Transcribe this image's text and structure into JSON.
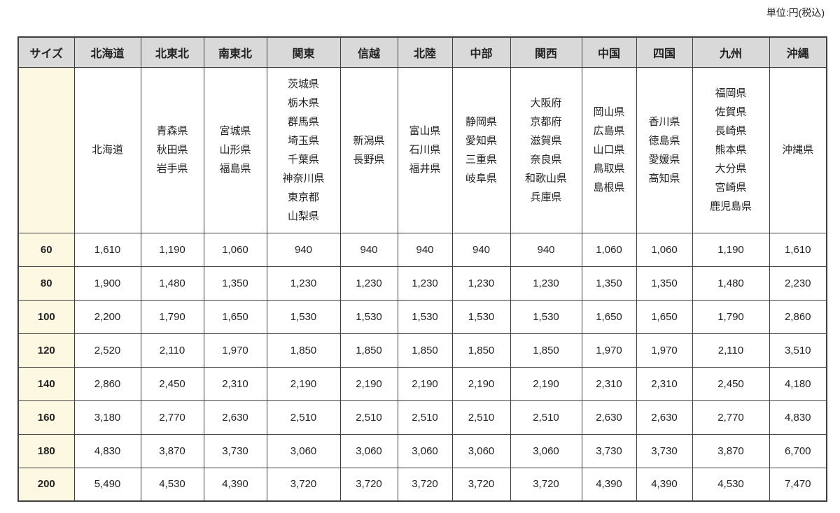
{
  "unit_note": "単位:円(税込)",
  "table": {
    "size_header": "サイズ",
    "regions": [
      {
        "name": "北海道",
        "prefectures": [
          "北海道"
        ]
      },
      {
        "name": "北東北",
        "prefectures": [
          "青森県",
          "秋田県",
          "岩手県"
        ]
      },
      {
        "name": "南東北",
        "prefectures": [
          "宮城県",
          "山形県",
          "福島県"
        ]
      },
      {
        "name": "関東",
        "prefectures": [
          "茨城県",
          "栃木県",
          "群馬県",
          "埼玉県",
          "千葉県",
          "神奈川県",
          "東京都",
          "山梨県"
        ]
      },
      {
        "name": "信越",
        "prefectures": [
          "新潟県",
          "長野県"
        ]
      },
      {
        "name": "北陸",
        "prefectures": [
          "富山県",
          "石川県",
          "福井県"
        ]
      },
      {
        "name": "中部",
        "prefectures": [
          "静岡県",
          "愛知県",
          "三重県",
          "岐阜県"
        ]
      },
      {
        "name": "関西",
        "prefectures": [
          "大阪府",
          "京都府",
          "滋賀県",
          "奈良県",
          "和歌山県",
          "兵庫県"
        ]
      },
      {
        "name": "中国",
        "prefectures": [
          "岡山県",
          "広島県",
          "山口県",
          "鳥取県",
          "島根県"
        ]
      },
      {
        "name": "四国",
        "prefectures": [
          "香川県",
          "徳島県",
          "愛媛県",
          "高知県"
        ]
      },
      {
        "name": "九州",
        "prefectures": [
          "福岡県",
          "佐賀県",
          "長崎県",
          "熊本県",
          "大分県",
          "宮崎県",
          "鹿児島県"
        ]
      },
      {
        "name": "沖縄",
        "prefectures": [
          "沖縄県"
        ]
      }
    ],
    "rows": [
      {
        "size": "60",
        "prices": [
          "1,610",
          "1,190",
          "1,060",
          "940",
          "940",
          "940",
          "940",
          "940",
          "1,060",
          "1,060",
          "1,190",
          "1,610"
        ]
      },
      {
        "size": "80",
        "prices": [
          "1,900",
          "1,480",
          "1,350",
          "1,230",
          "1,230",
          "1,230",
          "1,230",
          "1,230",
          "1,350",
          "1,350",
          "1,480",
          "2,230"
        ]
      },
      {
        "size": "100",
        "prices": [
          "2,200",
          "1,790",
          "1,650",
          "1,530",
          "1,530",
          "1,530",
          "1,530",
          "1,530",
          "1,650",
          "1,650",
          "1,790",
          "2,860"
        ]
      },
      {
        "size": "120",
        "prices": [
          "2,520",
          "2,110",
          "1,970",
          "1,850",
          "1,850",
          "1,850",
          "1,850",
          "1,850",
          "1,970",
          "1,970",
          "2,110",
          "3,510"
        ]
      },
      {
        "size": "140",
        "prices": [
          "2,860",
          "2,450",
          "2,310",
          "2,190",
          "2,190",
          "2,190",
          "2,190",
          "2,190",
          "2,310",
          "2,310",
          "2,450",
          "4,180"
        ]
      },
      {
        "size": "160",
        "prices": [
          "3,180",
          "2,770",
          "2,630",
          "2,510",
          "2,510",
          "2,510",
          "2,510",
          "2,510",
          "2,630",
          "2,630",
          "2,770",
          "4,830"
        ]
      },
      {
        "size": "180",
        "prices": [
          "4,830",
          "3,870",
          "3,730",
          "3,060",
          "3,060",
          "3,060",
          "3,060",
          "3,060",
          "3,730",
          "3,730",
          "3,870",
          "6,700"
        ]
      },
      {
        "size": "200",
        "prices": [
          "5,490",
          "4,530",
          "4,390",
          "3,720",
          "3,720",
          "3,720",
          "3,720",
          "3,720",
          "4,390",
          "4,390",
          "4,530",
          "7,470"
        ]
      }
    ],
    "colors": {
      "header_bg": "#d9d9d9",
      "size_col_bg": "#fdf8e1",
      "border": "#3f3f3f"
    }
  }
}
